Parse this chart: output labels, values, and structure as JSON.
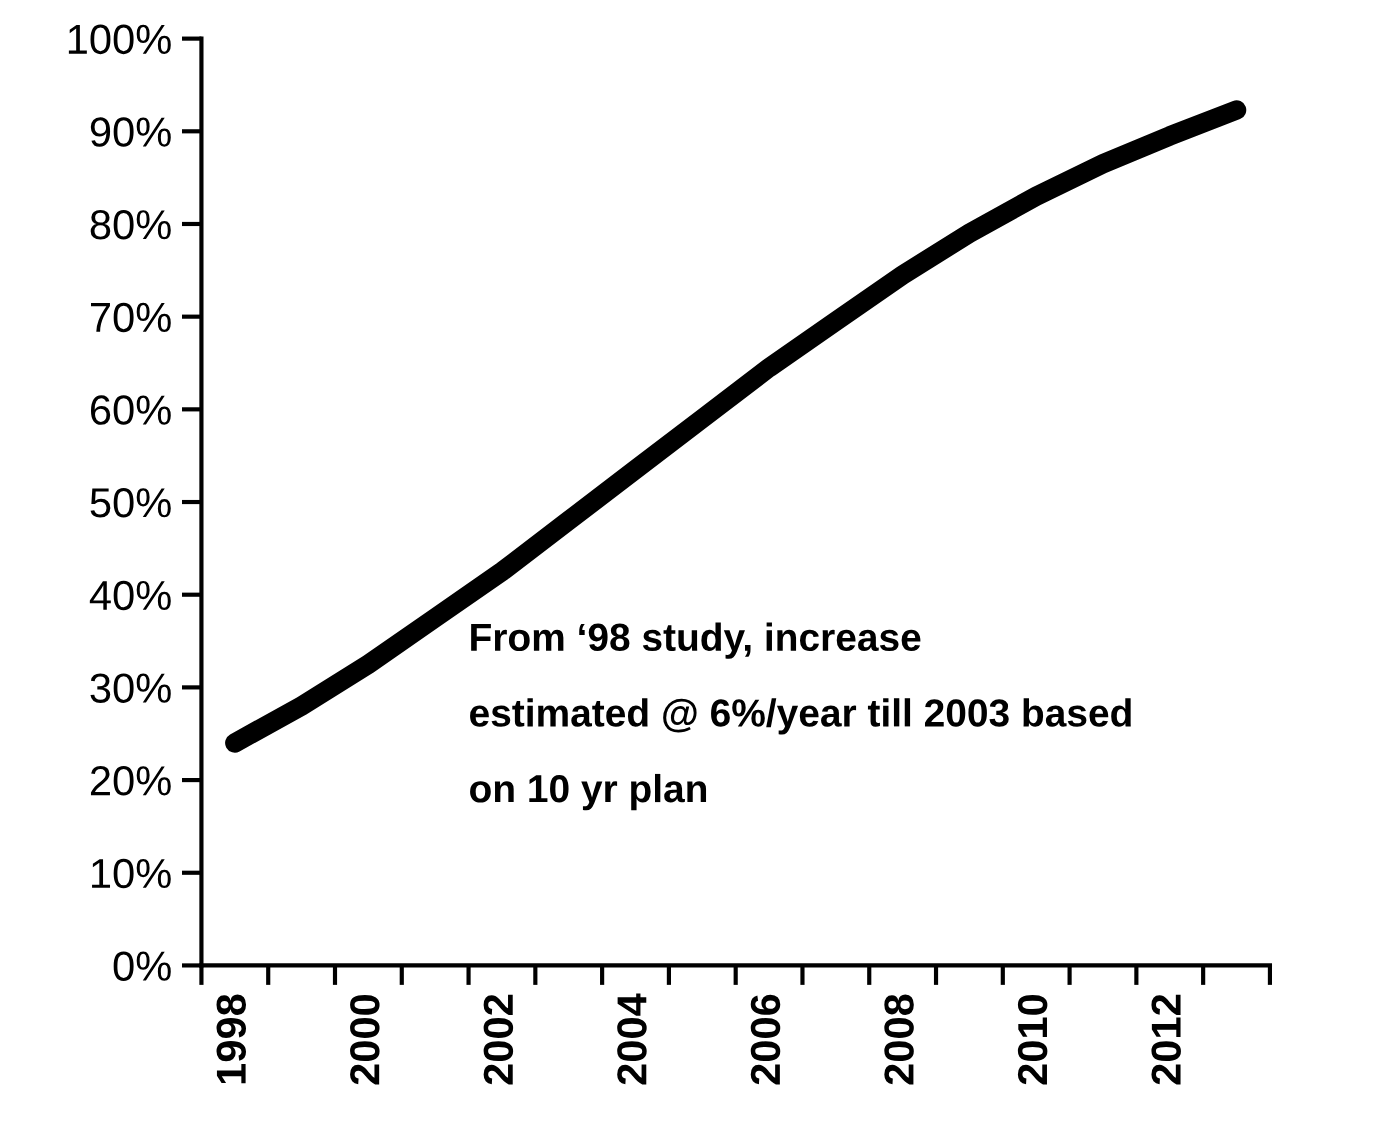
{
  "chart_data": {
    "type": "line",
    "x": [
      1998,
      1999,
      2000,
      2001,
      2002,
      2003,
      2004,
      2005,
      2006,
      2007,
      2008,
      2009,
      2010,
      2011,
      2012,
      2013
    ],
    "series": [
      {
        "color": "#000000",
        "values": [
          24,
          28,
          32.5,
          37.5,
          42.5,
          48,
          53.5,
          59,
          64.5,
          69.5,
          74.5,
          79,
          83,
          86.5,
          89.5,
          92.3
        ]
      }
    ],
    "xlim": [
      1997.5,
      2013.5
    ],
    "xticks": [
      {
        "value": 1997.5,
        "label": null
      },
      {
        "value": 1998,
        "label": "1998"
      },
      {
        "value": 1998.5,
        "label": null
      },
      {
        "value": 1999.5,
        "label": null
      },
      {
        "value": 2000,
        "label": "2000"
      },
      {
        "value": 2000.5,
        "label": null
      },
      {
        "value": 2001.5,
        "label": null
      },
      {
        "value": 2002,
        "label": "2002"
      },
      {
        "value": 2002.5,
        "label": null
      },
      {
        "value": 2003.5,
        "label": null
      },
      {
        "value": 2004,
        "label": "2004"
      },
      {
        "value": 2004.5,
        "label": null
      },
      {
        "value": 2005.5,
        "label": null
      },
      {
        "value": 2006,
        "label": "2006"
      },
      {
        "value": 2006.5,
        "label": null
      },
      {
        "value": 2007.5,
        "label": null
      },
      {
        "value": 2008,
        "label": "2008"
      },
      {
        "value": 2008.5,
        "label": null
      },
      {
        "value": 2009.5,
        "label": null
      },
      {
        "value": 2010,
        "label": "2010"
      },
      {
        "value": 2010.5,
        "label": null
      },
      {
        "value": 2011.5,
        "label": null
      },
      {
        "value": 2012,
        "label": "2012"
      },
      {
        "value": 2012.5,
        "label": null
      },
      {
        "value": 2013.5,
        "label": null
      }
    ],
    "ylim": [
      0,
      100
    ],
    "yticks": [
      {
        "value": 0,
        "label": "0%"
      },
      {
        "value": 10,
        "label": "10%"
      },
      {
        "value": 20,
        "label": "20%"
      },
      {
        "value": 30,
        "label": "30%"
      },
      {
        "value": 40,
        "label": "40%"
      },
      {
        "value": 50,
        "label": "50%"
      },
      {
        "value": 60,
        "label": "60%"
      },
      {
        "value": 70,
        "label": "70%"
      },
      {
        "value": 80,
        "label": "80%"
      },
      {
        "value": 90,
        "label": "90%"
      },
      {
        "value": 100,
        "label": "100%"
      }
    ],
    "annotations": [
      "From ‘98 study, increase\nestimated @ 6%/year till 2003 based\non 10 yr plan"
    ],
    "grid": false,
    "legend": false,
    "marker": "none",
    "line_style": "solid"
  }
}
